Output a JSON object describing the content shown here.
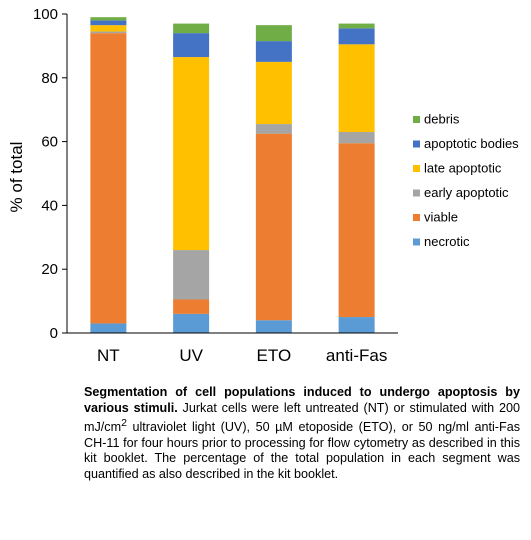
{
  "chart_data": {
    "type": "bar",
    "stacked": true,
    "categories": [
      "NT",
      "UV",
      "ETO",
      "anti-Fas"
    ],
    "series": [
      {
        "name": "necrotic",
        "color": "#5B9BD5",
        "values": [
          3,
          6,
          4,
          5
        ]
      },
      {
        "name": "viable",
        "color": "#ED7D31",
        "values": [
          91,
          4.5,
          58.5,
          54.5
        ]
      },
      {
        "name": "early apoptotic",
        "color": "#A5A5A5",
        "values": [
          0.5,
          15.5,
          3,
          3.5
        ]
      },
      {
        "name": "late apoptotic",
        "color": "#FFC000",
        "values": [
          2,
          60.5,
          19.5,
          27.5
        ]
      },
      {
        "name": "apoptotic bodies",
        "color": "#4472C4",
        "values": [
          1.5,
          7.5,
          6.5,
          5
        ]
      },
      {
        "name": "debris",
        "color": "#70AD47",
        "values": [
          1,
          3,
          5,
          1.5
        ]
      }
    ],
    "legend_order": [
      "debris",
      "apoptotic bodies",
      "late apoptotic",
      "early apoptotic",
      "viable",
      "necrotic"
    ],
    "legend_position": "right",
    "ylabel": "% of total",
    "ylim": [
      0,
      100
    ],
    "yticks": [
      0,
      20,
      40,
      60,
      80,
      100
    ],
    "grid": false
  },
  "caption": {
    "bold": "Segmentation of cell populations induced to undergo apoptosis by various stimuli.",
    "text_1": " Jurkat cells were left untreated (NT) or stimulated with 200 mJ/cm",
    "sup": "2",
    "text_2": " ultraviolet light (UV), 50 µM etoposide (ETO), or 50 ng/ml anti-Fas CH-11 for four hours prior to processing for flow cytometry as described in this kit booklet. The percentage of the total population in each segment was quantified as also described in the kit booklet."
  }
}
